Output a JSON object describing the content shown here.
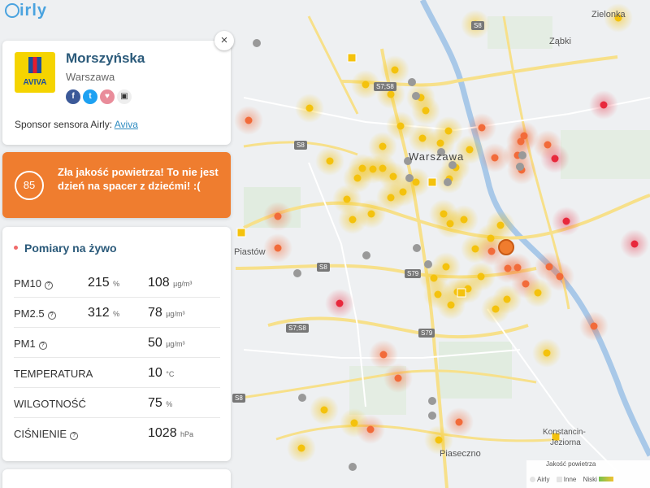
{
  "app": {
    "logo_text": "irly"
  },
  "map": {
    "places": {
      "warszawa": "Warszawa",
      "zabki": "Ząbki",
      "zielonka": "Zielonka",
      "piastow": "Piastów",
      "piaseczno": "Piaseczno",
      "konstancin1": "Konstancin-",
      "konstancin2": "Jeziorna"
    },
    "roads": {
      "s7s8": "S7;S8",
      "s8": "S8",
      "s79": "S79",
      "s8b": "S8",
      "s7s8b": "S7;S8",
      "s8c": "S8",
      "s79b": "S79",
      "s8d": "S8"
    }
  },
  "sensor": {
    "close_icon": "×",
    "sponsor_logo_text": "AVIVA",
    "name": "Morszyńska",
    "city": "Warszawa",
    "share": {
      "facebook": "f",
      "twitter": "t",
      "heart": "♥",
      "embed": "▣"
    },
    "sponsor_label": "Sponsor sensora Airly:",
    "sponsor_link": "Aviva"
  },
  "alert": {
    "aqi": "85",
    "message": "Zła jakość powietrza! To nie jest dzień na spacer z dziećmi! :(",
    "color": "#ef7d2f"
  },
  "measurements": {
    "title": "Pomiary na żywo",
    "rows": [
      {
        "name": "PM10",
        "pct": "215",
        "pct_unit": "%",
        "value": "108",
        "unit": "µg/m³"
      },
      {
        "name": "PM2.5",
        "pct": "312",
        "pct_unit": "%",
        "value": "78",
        "unit": "µg/m³"
      },
      {
        "name": "PM1",
        "pct": "",
        "pct_unit": "",
        "value": "50",
        "unit": "µg/m³"
      },
      {
        "name": "TEMPERATURA",
        "pct": "",
        "pct_unit": "",
        "value": "10",
        "unit": "°C"
      },
      {
        "name": "WILGOTNOŚĆ",
        "pct": "",
        "pct_unit": "",
        "value": "75",
        "unit": "%"
      },
      {
        "name": "CIŚNIENIE",
        "pct": "",
        "pct_unit": "",
        "value": "1028",
        "unit": "hPa"
      }
    ]
  },
  "legend": {
    "title": "Jakość powietrza",
    "airly": "Airly",
    "inne": "Inne",
    "niski": "Niski"
  }
}
